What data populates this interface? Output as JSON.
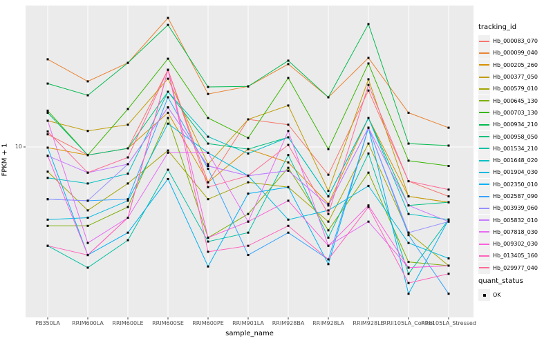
{
  "figure": {
    "y_axis": {
      "label": "FPKM + 1",
      "tick": "10",
      "scale": "log10"
    },
    "x_axis": {
      "label": "sample_name"
    },
    "legend": {
      "tracking_title": "tracking_id",
      "quant_title": "quant_status",
      "quant_ok_label": "OK"
    },
    "panel_bg": "#ebebeb",
    "gridline_color": "#ffffff",
    "tick_color": "#333333",
    "point_color": "#000000"
  },
  "chart_data": {
    "type": "line",
    "title": "",
    "xlabel": "sample_name",
    "ylabel": "FPKM + 1",
    "y_scale": "log10",
    "y_tick_labels": [
      "10"
    ],
    "ylim_log": [
      0.85,
      80
    ],
    "grid": true,
    "legend_position": "right",
    "point_marker": {
      "shape": "square",
      "color": "#000000",
      "meaning": "quant_status OK"
    },
    "categories": [
      "PB350LA",
      "RRIM600LA",
      "RRIM600LE",
      "RRIM600SE",
      "RRIM600PE",
      "RRIM901LA",
      "RRIM928BA",
      "RRIM928LA",
      "RRIM928LE",
      "RRII105LA_Control",
      "RRII105LA_Stressed"
    ],
    "series": [
      {
        "name": "Hb_000083_070",
        "color": "#F8766D",
        "values": [
          12.0,
          8.9,
          9.8,
          30.5,
          6.0,
          14.9,
          13.8,
          6.7,
          22.6,
          6.1,
          4.9
        ]
      },
      {
        "name": "Hb_000099_040",
        "color": "#EA8331",
        "values": [
          35.5,
          25.8,
          33.7,
          64.5,
          21.5,
          24.0,
          33.1,
          20.5,
          36.2,
          16.4,
          13.2
        ]
      },
      {
        "name": "Hb_000205_260",
        "color": "#D89000",
        "values": [
          9.9,
          8.9,
          9.8,
          16.4,
          6.0,
          9.7,
          8.0,
          4.4,
          15.2,
          4.9,
          4.5
        ]
      },
      {
        "name": "Hb_000377_050",
        "color": "#C09B00",
        "values": [
          14.6,
          12.6,
          13.8,
          26.8,
          7.8,
          14.9,
          18.2,
          5.3,
          26.6,
          4.9,
          4.5
        ]
      },
      {
        "name": "Hb_000579_010",
        "color": "#A3A500",
        "values": [
          7.0,
          4.0,
          5.9,
          9.5,
          4.7,
          6.0,
          5.6,
          3.4,
          10.5,
          2.9,
          1.8
        ]
      },
      {
        "name": "Hb_000645_130",
        "color": "#7CAE00",
        "values": [
          3.2,
          3.2,
          4.2,
          15.2,
          2.7,
          3.8,
          7.4,
          3.0,
          6.9,
          1.9,
          1.8
        ]
      },
      {
        "name": "Hb_000703_130",
        "color": "#39B600",
        "values": [
          16.9,
          8.9,
          17.3,
          35.8,
          15.2,
          11.4,
          27.1,
          9.7,
          33.4,
          8.2,
          7.6
        ]
      },
      {
        "name": "Hb_000934_210",
        "color": "#00BB4E",
        "values": [
          25.0,
          21.1,
          33.7,
          58.3,
          23.8,
          24.0,
          34.8,
          20.5,
          59.0,
          10.5,
          10.2
        ]
      },
      {
        "name": "Hb_000958_050",
        "color": "#00BF7D",
        "values": [
          16.4,
          8.9,
          9.8,
          22.2,
          10.5,
          9.7,
          11.5,
          4.9,
          15.2,
          4.3,
          4.5
        ]
      },
      {
        "name": "Hb_001534_210",
        "color": "#00C1A3",
        "values": [
          2.4,
          1.75,
          2.6,
          7.2,
          2.55,
          2.9,
          8.9,
          2.7,
          9.1,
          1.6,
          3.5
        ]
      },
      {
        "name": "Hb_001648_020",
        "color": "#00BFC4",
        "values": [
          6.4,
          5.9,
          6.8,
          22.2,
          11.6,
          9.1,
          11.5,
          4.9,
          15.2,
          3.8,
          3.5
        ]
      },
      {
        "name": "Hb_001904_030",
        "color": "#00BAE0",
        "values": [
          3.5,
          3.6,
          4.6,
          14.0,
          9.2,
          6.6,
          3.5,
          4.0,
          5.7,
          2.5,
          2.0
        ]
      },
      {
        "name": "Hb_002350_010",
        "color": "#00B0F6",
        "values": [
          9.9,
          2.1,
          2.9,
          6.3,
          1.78,
          5.1,
          5.6,
          1.84,
          13.2,
          1.2,
          3.5
        ]
      },
      {
        "name": "Hb_002587_090",
        "color": "#35A2FF",
        "values": [
          4.7,
          4.6,
          4.7,
          20.5,
          7.3,
          2.1,
          2.9,
          1.97,
          13.2,
          2.8,
          1.2
        ]
      },
      {
        "name": "Hb_003939_060",
        "color": "#9590FF",
        "values": [
          4.7,
          4.6,
          7.8,
          17.7,
          7.6,
          6.6,
          7.1,
          4.3,
          13.2,
          2.9,
          3.4
        ]
      },
      {
        "name": "Hb_005832_010",
        "color": "#C77CFF",
        "values": [
          8.8,
          6.9,
          7.8,
          17.7,
          7.6,
          6.6,
          7.1,
          4.3,
          13.2,
          4.3,
          3.4
        ]
      },
      {
        "name": "Hb_007818_030",
        "color": "#E76BF3",
        "values": [
          14.6,
          2.5,
          3.6,
          9.2,
          9.2,
          3.4,
          12.6,
          2.4,
          3.4,
          1.75,
          1.8
        ]
      },
      {
        "name": "Hb_009302_030",
        "color": "#FA62DB",
        "values": [
          8.8,
          2.1,
          3.6,
          30.5,
          2.7,
          3.4,
          4.6,
          2.4,
          4.3,
          1.75,
          1.8
        ]
      },
      {
        "name": "Hb_013405_160",
        "color": "#FF62BC",
        "values": [
          2.4,
          2.1,
          3.6,
          30.5,
          2.2,
          2.4,
          3.2,
          1.97,
          4.2,
          1.4,
          1.6
        ]
      },
      {
        "name": "Hb_029977_040",
        "color": "#FF6A98",
        "values": [
          12.5,
          6.9,
          8.6,
          30.5,
          5.6,
          6.6,
          10.3,
          3.8,
          24.5,
          6.1,
          5.4
        ]
      }
    ]
  }
}
